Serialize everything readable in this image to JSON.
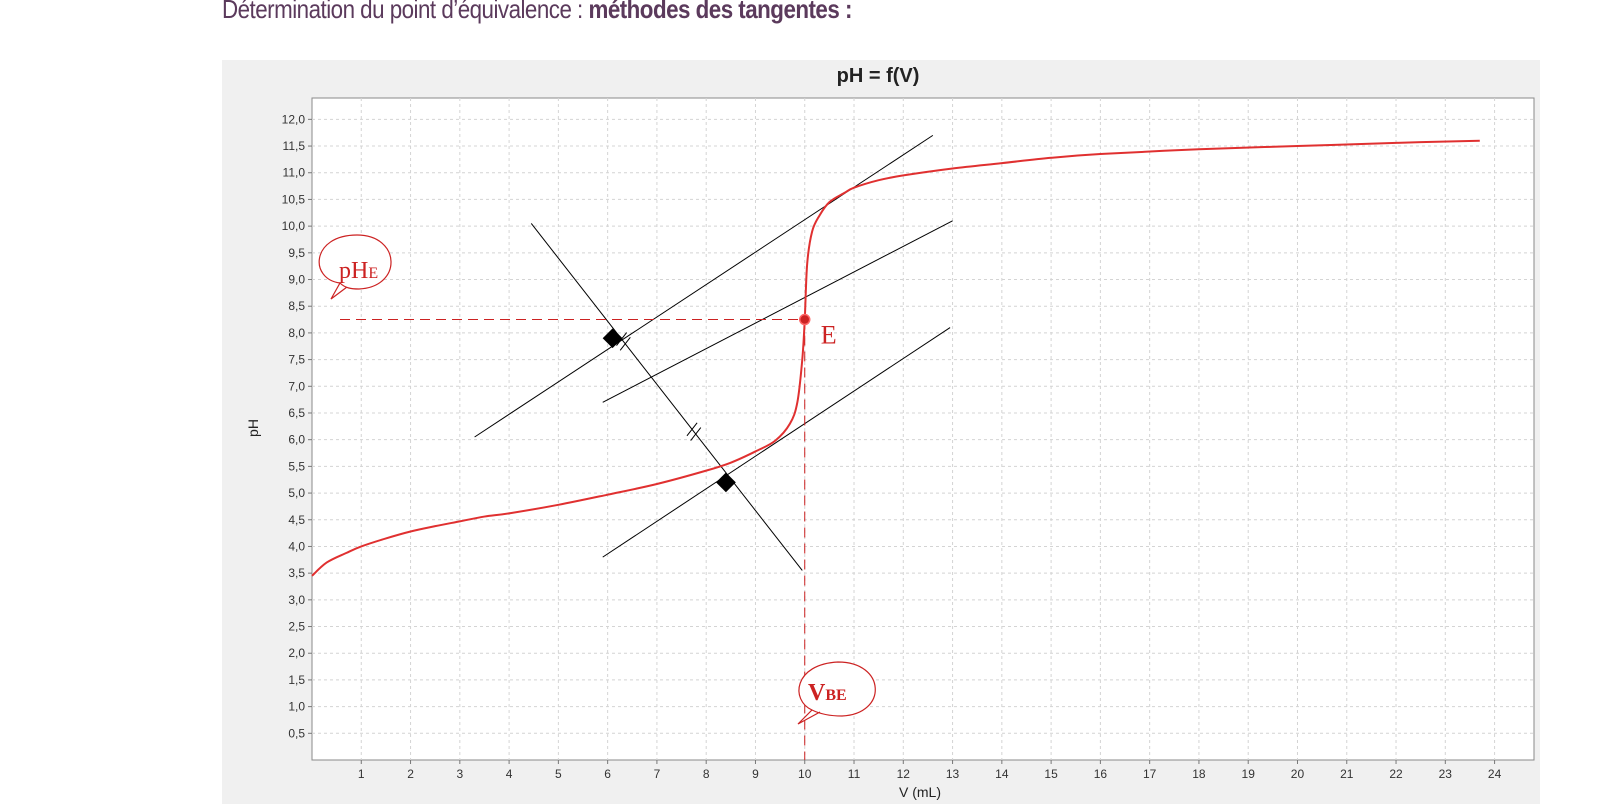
{
  "page": {
    "heading_normal": "Détermination du point d’équivalence : ",
    "heading_bold": "méthodes des tangentes :"
  },
  "chart_data": {
    "type": "line",
    "title": "pH = f(V)",
    "xlabel": "V (mL)",
    "ylabel": "pH",
    "xlim": [
      0,
      24.8
    ],
    "ylim": [
      0,
      12.4
    ],
    "x_ticks": [
      1,
      2,
      3,
      4,
      5,
      6,
      7,
      8,
      9,
      10,
      11,
      12,
      13,
      14,
      15,
      16,
      17,
      18,
      19,
      20,
      21,
      22,
      23,
      24
    ],
    "y_ticks": [
      "0,5",
      "1,0",
      "1,5",
      "2,0",
      "2,5",
      "3,0",
      "3,5",
      "4,0",
      "4,5",
      "5,0",
      "5,5",
      "6,0",
      "6,5",
      "7,0",
      "7,5",
      "8,0",
      "8,5",
      "9,0",
      "9,5",
      "10,0",
      "10,5",
      "11,0",
      "11,5",
      "12,0"
    ],
    "grid": true,
    "series": [
      {
        "color": "#e03030",
        "x": [
          0,
          0.3,
          0.7,
          1.0,
          1.5,
          2.0,
          2.5,
          3.0,
          3.5,
          4.0,
          5.0,
          6.0,
          7.0,
          8.0,
          8.5,
          9.0,
          9.4,
          9.7,
          9.85,
          9.95,
          10.0,
          10.05,
          10.15,
          10.3,
          10.5,
          10.8,
          11.0,
          11.5,
          12.0,
          13.0,
          14.0,
          15.0,
          16.0,
          18.0,
          20.0,
          22.0,
          23.7
        ],
        "y": [
          3.45,
          3.7,
          3.88,
          4.0,
          4.15,
          4.28,
          4.38,
          4.47,
          4.56,
          4.62,
          4.78,
          4.97,
          5.17,
          5.42,
          5.57,
          5.78,
          5.98,
          6.3,
          6.7,
          7.5,
          8.25,
          9.3,
          9.9,
          10.2,
          10.45,
          10.62,
          10.72,
          10.86,
          10.95,
          11.08,
          11.18,
          11.28,
          11.35,
          11.44,
          11.5,
          11.56,
          11.6
        ]
      }
    ],
    "construction": {
      "color": "#000000",
      "lines": [
        {
          "x": [
            3.3,
            12.6
          ],
          "y": [
            6.05,
            11.7
          ]
        },
        {
          "x": [
            5.9,
            13.0
          ],
          "y": [
            6.7,
            10.1
          ]
        },
        {
          "x": [
            5.9,
            12.95
          ],
          "y": [
            3.8,
            8.1
          ]
        },
        {
          "x": [
            4.45,
            9.95
          ],
          "y": [
            10.05,
            3.55
          ]
        }
      ],
      "markers": [
        {
          "x": 6.1,
          "y": 7.9
        },
        {
          "x": 8.4,
          "y": 5.2
        }
      ]
    },
    "equivalence_point": {
      "label": "E",
      "x": 10.0,
      "y": 8.25,
      "color": "#cc2222",
      "ph_label": "pH",
      "ph_sub": "E",
      "v_label": "V",
      "v_sub": "BE"
    }
  }
}
